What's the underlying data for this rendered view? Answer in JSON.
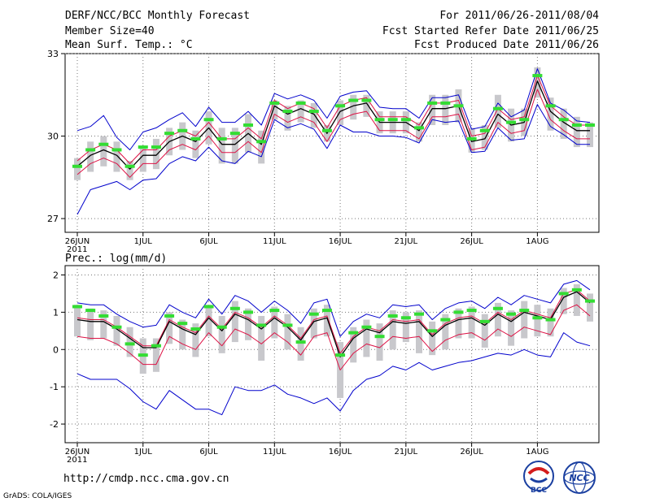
{
  "header": {
    "title": "DERF/NCC/BCC Monthly Forecast",
    "member_size": "Member Size=40",
    "variable": "Mean Surf. Temp.: °C",
    "forecast_period": "For 2011/06/26-2011/08/04",
    "started_refer": "Fcst Started Refer Date 2011/06/25",
    "produced": "Fcst Produced Date 2011/06/26"
  },
  "footer": {
    "url": "http://cmdp.ncc.cma.gov.cn",
    "credit": "GrADS: COLA/IGES",
    "logo_bcc": "BCC",
    "logo_ncc": "NCC"
  },
  "colors": {
    "median": "#000000",
    "red_band": "#dd1144",
    "blue_band": "#0000cc",
    "box": "#c8c8cc",
    "mean": "#33dd33",
    "grid": "#777777"
  },
  "chart_data": [
    {
      "type": "line",
      "name": "temperature",
      "title": "Mean Surf. Temp.: °C",
      "ylim": [
        26.5,
        33
      ],
      "yticks": [
        27,
        30,
        33
      ],
      "grid": true,
      "x": [
        0,
        1,
        2,
        3,
        4,
        5,
        6,
        7,
        8,
        9,
        10,
        11,
        12,
        13,
        14,
        15,
        16,
        17,
        18,
        19,
        20,
        21,
        22,
        23,
        24,
        25,
        26,
        27,
        28,
        29,
        30,
        31,
        32,
        33,
        34,
        35,
        36,
        37,
        38,
        39
      ],
      "xtick_positions": [
        0,
        5,
        10,
        15,
        20,
        25,
        30,
        35
      ],
      "xtick_labels": [
        "26JUN",
        "1JUL",
        "6JUL",
        "11JUL",
        "16JUL",
        "21JUL",
        "26JUL",
        "1AUG"
      ],
      "year_label": "2011",
      "series": [
        {
          "name": "median",
          "values": [
            28.9,
            29.3,
            29.5,
            29.3,
            28.8,
            29.3,
            29.3,
            29.8,
            30.0,
            29.8,
            30.3,
            29.7,
            29.7,
            30.1,
            29.7,
            31.1,
            30.8,
            31.0,
            30.8,
            30.1,
            30.9,
            31.1,
            31.2,
            30.5,
            30.5,
            30.5,
            30.2,
            31.0,
            31.0,
            31.1,
            29.8,
            29.9,
            30.8,
            30.4,
            30.5,
            32.0,
            30.9,
            30.5,
            30.2,
            30.2
          ]
        },
        {
          "name": "red_upper",
          "values": [
            29.1,
            29.5,
            29.7,
            29.5,
            29.0,
            29.5,
            29.5,
            30.0,
            30.2,
            30.0,
            30.5,
            29.9,
            29.9,
            30.3,
            29.9,
            31.3,
            31.0,
            31.2,
            31.0,
            30.3,
            31.1,
            31.3,
            31.4,
            30.7,
            30.7,
            30.7,
            30.4,
            31.2,
            31.2,
            31.3,
            30.0,
            30.1,
            31.0,
            30.6,
            30.7,
            32.2,
            31.1,
            30.7,
            30.4,
            30.4
          ]
        },
        {
          "name": "red_lower",
          "values": [
            28.6,
            29.0,
            29.2,
            29.0,
            28.5,
            29.0,
            29.0,
            29.5,
            29.7,
            29.5,
            30.0,
            29.4,
            29.4,
            29.8,
            29.4,
            30.8,
            30.5,
            30.7,
            30.5,
            29.8,
            30.6,
            30.8,
            30.9,
            30.2,
            30.2,
            30.2,
            29.9,
            30.7,
            30.7,
            30.8,
            29.5,
            29.6,
            30.5,
            30.1,
            30.2,
            31.7,
            30.6,
            30.2,
            29.9,
            29.9
          ]
        },
        {
          "name": "blue_upper",
          "values": [
            30.2,
            30.35,
            30.75,
            29.95,
            29.5,
            30.15,
            30.3,
            30.6,
            30.85,
            30.35,
            31.05,
            30.5,
            30.5,
            30.9,
            30.4,
            31.55,
            31.35,
            31.5,
            31.3,
            30.65,
            31.45,
            31.6,
            31.65,
            31.05,
            31.0,
            31.0,
            30.65,
            31.4,
            31.4,
            31.5,
            30.25,
            30.35,
            31.2,
            30.7,
            30.95,
            32.45,
            31.2,
            30.95,
            30.55,
            30.5
          ]
        },
        {
          "name": "blue_lower",
          "values": [
            27.15,
            28.05,
            28.2,
            28.35,
            28.05,
            28.4,
            28.45,
            29.0,
            29.25,
            29.1,
            29.6,
            29.1,
            29.0,
            29.45,
            29.25,
            30.6,
            30.3,
            30.45,
            30.25,
            29.55,
            30.4,
            30.15,
            30.15,
            30.0,
            30.0,
            29.95,
            29.75,
            30.6,
            30.5,
            30.55,
            29.4,
            29.45,
            30.3,
            29.85,
            29.9,
            31.15,
            30.35,
            30.05,
            29.7,
            29.7
          ]
        },
        {
          "name": "box_high",
          "values": [
            29.2,
            29.8,
            30.0,
            29.8,
            29.1,
            29.6,
            29.9,
            30.3,
            30.5,
            30.2,
            30.9,
            30.3,
            30.3,
            30.8,
            30.2,
            31.3,
            31.1,
            31.3,
            31.2,
            30.4,
            31.3,
            31.5,
            31.5,
            30.9,
            30.9,
            30.9,
            30.5,
            31.5,
            31.5,
            31.7,
            30.3,
            30.4,
            31.5,
            31.0,
            31.0,
            32.5,
            31.4,
            31.0,
            30.7,
            30.5
          ]
        },
        {
          "name": "box_low",
          "values": [
            28.4,
            28.7,
            28.9,
            28.7,
            28.4,
            28.7,
            28.8,
            29.3,
            29.5,
            29.2,
            29.7,
            29.0,
            29.0,
            29.4,
            29.0,
            30.6,
            30.2,
            30.5,
            30.3,
            29.8,
            30.4,
            30.6,
            30.7,
            30.1,
            30.1,
            30.1,
            29.8,
            30.4,
            30.4,
            30.5,
            29.4,
            29.5,
            30.3,
            29.8,
            30.0,
            31.4,
            30.2,
            29.9,
            29.6,
            29.6
          ]
        },
        {
          "name": "ensemble_mean",
          "values": [
            28.9,
            29.5,
            29.7,
            29.5,
            28.9,
            29.6,
            29.6,
            30.1,
            30.2,
            29.9,
            30.6,
            29.9,
            30.1,
            30.4,
            29.8,
            31.2,
            30.9,
            31.2,
            30.9,
            30.2,
            31.1,
            31.3,
            31.3,
            30.6,
            30.6,
            30.6,
            30.3,
            31.2,
            31.2,
            31.1,
            29.9,
            30.2,
            31.0,
            30.5,
            30.6,
            32.2,
            31.1,
            30.6,
            30.4,
            30.4
          ]
        }
      ]
    },
    {
      "type": "line",
      "name": "precipitation",
      "title": "Prec.: log(mm/d)",
      "ylim": [
        -2.5,
        2.25
      ],
      "yticks": [
        -2,
        -1,
        0,
        1,
        2
      ],
      "grid": true,
      "x": [
        0,
        1,
        2,
        3,
        4,
        5,
        6,
        7,
        8,
        9,
        10,
        11,
        12,
        13,
        14,
        15,
        16,
        17,
        18,
        19,
        20,
        21,
        22,
        23,
        24,
        25,
        26,
        27,
        28,
        29,
        30,
        31,
        32,
        33,
        34,
        35,
        36,
        37,
        38,
        39
      ],
      "xtick_positions": [
        0,
        5,
        10,
        15,
        20,
        25,
        30,
        35
      ],
      "xtick_labels": [
        "26JUN",
        "1JUL",
        "6JUL",
        "11JUL",
        "16JUL",
        "21JUL",
        "26JUL",
        "1AUG"
      ],
      "year_label": "2011",
      "series": [
        {
          "name": "median",
          "values": [
            0.8,
            0.75,
            0.75,
            0.55,
            0.3,
            0.05,
            0.05,
            0.75,
            0.55,
            0.4,
            0.85,
            0.5,
            0.95,
            0.8,
            0.55,
            0.85,
            0.6,
            0.25,
            0.75,
            0.85,
            -0.2,
            0.3,
            0.55,
            0.45,
            0.75,
            0.7,
            0.75,
            0.35,
            0.65,
            0.8,
            0.85,
            0.65,
            0.95,
            0.75,
            1.0,
            0.9,
            0.8,
            1.4,
            1.55,
            1.25
          ]
        },
        {
          "name": "red_upper",
          "values": [
            0.85,
            0.8,
            0.8,
            0.6,
            0.35,
            0.1,
            0.1,
            0.8,
            0.6,
            0.45,
            0.9,
            0.55,
            1.0,
            0.85,
            0.6,
            0.9,
            0.65,
            0.3,
            0.8,
            0.9,
            -0.1,
            0.35,
            0.6,
            0.5,
            0.8,
            0.75,
            0.8,
            0.4,
            0.7,
            0.85,
            0.9,
            0.7,
            1.0,
            0.8,
            1.05,
            0.95,
            0.85,
            1.5,
            1.6,
            1.3
          ]
        },
        {
          "name": "red_lower",
          "values": [
            0.35,
            0.3,
            0.3,
            0.15,
            -0.1,
            -0.4,
            -0.4,
            0.35,
            0.15,
            0.0,
            0.45,
            0.1,
            0.55,
            0.4,
            0.15,
            0.45,
            0.2,
            -0.15,
            0.35,
            0.45,
            -0.55,
            -0.1,
            0.15,
            0.05,
            0.35,
            0.3,
            0.35,
            -0.05,
            0.25,
            0.4,
            0.45,
            0.25,
            0.55,
            0.35,
            0.6,
            0.5,
            0.4,
            1.05,
            1.2,
            0.9
          ]
        },
        {
          "name": "blue_upper",
          "values": [
            1.25,
            1.2,
            1.2,
            0.95,
            0.75,
            0.6,
            0.65,
            1.2,
            1.0,
            0.85,
            1.35,
            0.95,
            1.45,
            1.3,
            1.0,
            1.3,
            1.05,
            0.7,
            1.25,
            1.35,
            0.35,
            0.75,
            0.95,
            0.85,
            1.2,
            1.15,
            1.2,
            0.8,
            1.1,
            1.25,
            1.3,
            1.1,
            1.4,
            1.2,
            1.45,
            1.35,
            1.25,
            1.75,
            1.85,
            1.6
          ]
        },
        {
          "name": "blue_lower",
          "values": [
            -0.65,
            -0.8,
            -0.8,
            -0.8,
            -1.05,
            -1.4,
            -1.6,
            -1.1,
            -1.35,
            -1.6,
            -1.6,
            -1.75,
            -1.0,
            -1.1,
            -1.1,
            -0.95,
            -1.2,
            -1.3,
            -1.45,
            -1.3,
            -1.65,
            -1.1,
            -0.8,
            -0.7,
            -0.45,
            -0.55,
            -0.35,
            -0.55,
            -0.45,
            -0.35,
            -0.3,
            -0.2,
            -0.1,
            -0.15,
            0.0,
            -0.15,
            -0.2,
            0.45,
            0.2,
            0.1
          ]
        },
        {
          "name": "box_high",
          "values": [
            1.2,
            1.1,
            1.05,
            0.9,
            0.6,
            0.3,
            0.3,
            1.0,
            0.8,
            0.7,
            1.2,
            0.9,
            1.3,
            1.1,
            0.9,
            1.15,
            0.95,
            0.6,
            1.1,
            1.2,
            0.2,
            0.6,
            0.8,
            0.7,
            1.05,
            1.0,
            1.05,
            0.75,
            0.95,
            1.1,
            1.15,
            0.95,
            1.25,
            1.05,
            1.3,
            1.2,
            1.1,
            1.65,
            1.75,
            1.5
          ]
        },
        {
          "name": "box_low",
          "values": [
            0.35,
            0.25,
            0.3,
            0.1,
            -0.2,
            -0.65,
            -0.6,
            0.15,
            0.0,
            -0.2,
            0.35,
            -0.1,
            0.2,
            0.25,
            -0.3,
            0.3,
            0.0,
            -0.3,
            0.3,
            0.35,
            -1.3,
            -0.35,
            -0.2,
            -0.3,
            0.0,
            0.2,
            -0.1,
            -0.15,
            0.0,
            0.3,
            0.3,
            0.05,
            0.35,
            0.1,
            0.3,
            0.35,
            0.35,
            0.95,
            0.9,
            0.75
          ]
        },
        {
          "name": "ensemble_mean",
          "values": [
            1.15,
            1.05,
            0.9,
            0.6,
            0.15,
            -0.15,
            0.1,
            0.9,
            0.7,
            0.55,
            1.15,
            0.6,
            1.1,
            1.0,
            0.65,
            1.05,
            0.65,
            0.2,
            0.95,
            1.05,
            -0.15,
            0.45,
            0.6,
            0.35,
            0.9,
            0.85,
            0.95,
            0.5,
            0.8,
            1.0,
            1.05,
            0.75,
            1.1,
            0.95,
            1.05,
            0.85,
            0.8,
            1.5,
            1.6,
            1.3
          ]
        }
      ]
    }
  ]
}
